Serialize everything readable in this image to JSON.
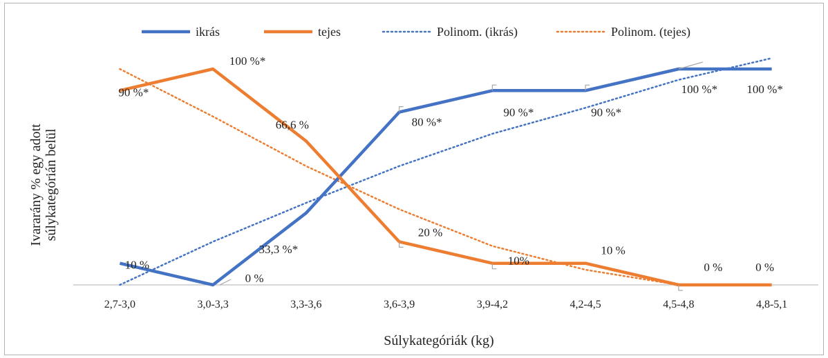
{
  "chart_data": {
    "type": "line",
    "xlabel": "Súlykategóriák (kg)",
    "ylabel_line1": "Ivararány % egy adott",
    "ylabel_line2": "súlykategórián belül",
    "categories": [
      "2,7-3,0",
      "3,0-3,3",
      "3,3-3,6",
      "3,6-3,9",
      "3,9-4,2",
      "4,2-4,5",
      "4,5-4,8",
      "4,8-5,1"
    ],
    "ylim": [
      0,
      100
    ],
    "grid": false,
    "legend_position": "top",
    "series": [
      {
        "name": "ikrás",
        "style": "solid",
        "color": "#4472c4",
        "values": [
          10,
          0,
          33.3,
          80,
          90,
          90,
          100,
          100
        ],
        "labels": [
          "10 %",
          "0 %",
          "33,3 %*",
          "80 %*",
          "90 %*",
          "90 %*",
          "100 %*",
          "100 %*"
        ]
      },
      {
        "name": "tejes",
        "style": "solid",
        "color": "#ed7d31",
        "values": [
          90,
          100,
          66.6,
          20,
          10,
          10,
          0,
          0
        ],
        "labels": [
          "90 %*",
          "100 %*",
          "66,6 %",
          "20 %",
          "10%",
          "10 %",
          "0 %",
          "0 %"
        ]
      },
      {
        "name": "Polinom. (ikrás)",
        "style": "dotted",
        "color": "#4472c4",
        "values": [
          0,
          20,
          38,
          55,
          70,
          82,
          95,
          105
        ]
      },
      {
        "name": "Polinom. (tejes)",
        "style": "dotted",
        "color": "#ed7d31",
        "values": [
          100,
          78,
          55,
          35,
          18,
          7,
          0,
          0
        ]
      }
    ]
  }
}
